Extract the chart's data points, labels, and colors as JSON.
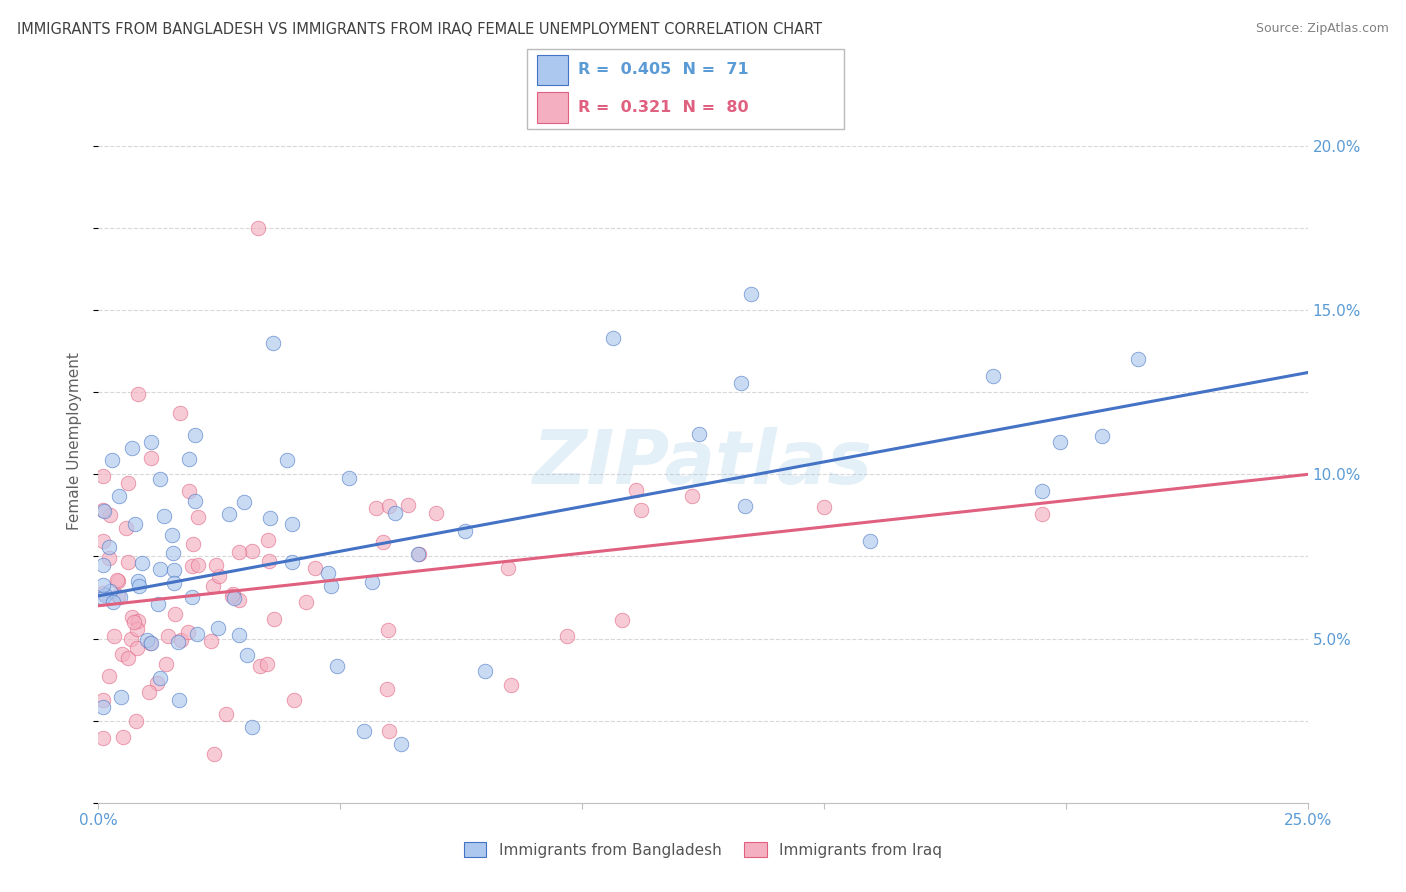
{
  "title": "IMMIGRANTS FROM BANGLADESH VS IMMIGRANTS FROM IRAQ FEMALE UNEMPLOYMENT CORRELATION CHART",
  "source": "Source: ZipAtlas.com",
  "ylabel": "Female Unemployment",
  "xlim": [
    0.0,
    0.25
  ],
  "ylim": [
    0.0,
    0.22
  ],
  "yticks": [
    0.05,
    0.1,
    0.15,
    0.2
  ],
  "yticklabels": [
    "5.0%",
    "10.0%",
    "15.0%",
    "20.0%"
  ],
  "xtick_positions": [
    0.0,
    0.05,
    0.1,
    0.15,
    0.2,
    0.25
  ],
  "legend1_r": "0.405",
  "legend1_n": "71",
  "legend2_r": "0.321",
  "legend2_n": "80",
  "color_bangladesh": "#adc8ee",
  "color_iraq": "#f4afc0",
  "line_color_bangladesh": "#4472c4",
  "line_color_iraq": "#e06080",
  "watermark": "ZIPatlas",
  "title_color": "#404040",
  "source_color": "#808080",
  "tick_color": "#5b9bd5",
  "ylabel_color": "#606060",
  "grid_color": "#d8d8d8",
  "spine_color": "#c0c0c0",
  "bang_line_start_y": 0.063,
  "bang_line_end_y": 0.131,
  "iraq_line_start_y": 0.06,
  "iraq_line_end_y": 0.1
}
